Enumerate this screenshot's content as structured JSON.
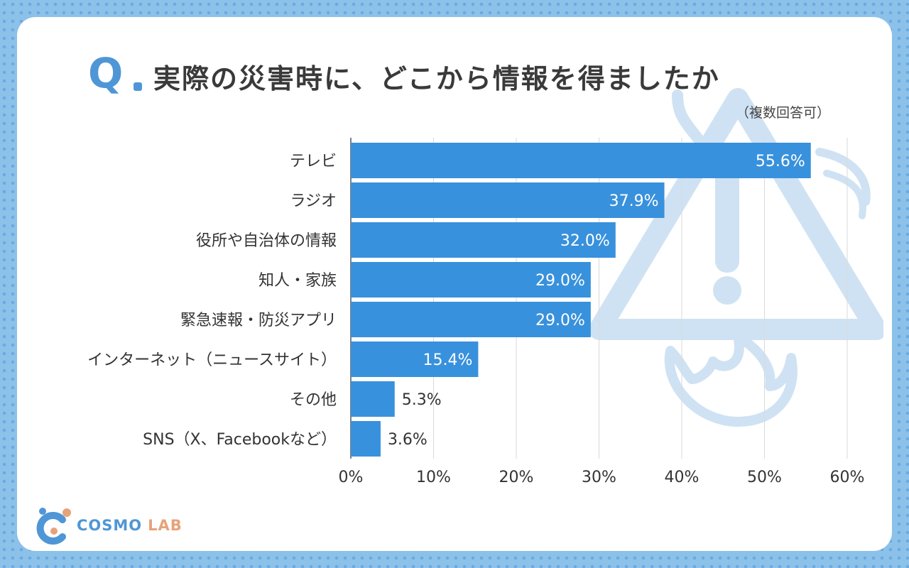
{
  "header": {
    "q_letter": "Q",
    "title": "実際の災害時に、どこから情報を得ましたか",
    "subtitle": "（複数回答可）"
  },
  "logo": {
    "part1": "COSMO",
    "part2": "LAB"
  },
  "colors": {
    "bar": "#3891dc",
    "accent": "#4f96d6",
    "grid": "#d9d9d9",
    "deco": "#cfe2f3"
  },
  "chart_data": {
    "type": "bar",
    "orientation": "horizontal",
    "categories": [
      "テレビ",
      "ラジオ",
      "役所や自治体の情報",
      "知人・家族",
      "緊急速報・防災アプリ",
      "インターネット（ニュースサイト）",
      "その他",
      "SNS（X、Facebookなど）"
    ],
    "values": [
      55.6,
      37.9,
      32.0,
      29.0,
      29.0,
      15.4,
      5.3,
      3.6
    ],
    "value_labels": [
      "55.6%",
      "37.9%",
      "32.0%",
      "29.0%",
      "29.0%",
      "15.4%",
      "5.3%",
      "3.6%"
    ],
    "xlim": [
      0,
      60
    ],
    "xticks": [
      0,
      10,
      20,
      30,
      40,
      50,
      60
    ],
    "xtick_labels": [
      "0%",
      "10%",
      "20%",
      "30%",
      "40%",
      "50%",
      "60%"
    ],
    "grid": true,
    "legend": "none"
  }
}
